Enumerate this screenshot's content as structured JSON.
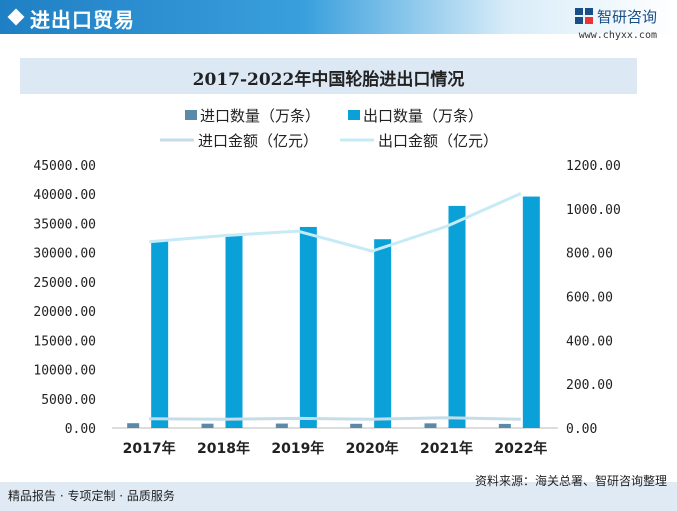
{
  "header": {
    "title": "进出口贸易",
    "brand": "智研咨询",
    "website": "www.chyxx.com"
  },
  "footer": {
    "left": "精品报告 · 专项定制 · 品质服务",
    "source": "资料来源：海关总署、智研咨询整理"
  },
  "colors": {
    "import_qty": "#5b8aa8",
    "export_qty": "#0aa0d8",
    "import_amt": "#c5dde8",
    "export_amt": "#c6ebf7"
  },
  "chart_data": {
    "type": "bar",
    "title": "2017-2022年中国轮胎进出口情况",
    "categories": [
      "2017年",
      "2018年",
      "2019年",
      "2020年",
      "2021年",
      "2022年"
    ],
    "series": [
      {
        "name": "进口数量（万条）",
        "type": "bar",
        "axis": "left",
        "values": [
          820,
          740,
          760,
          720,
          800,
          700
        ]
      },
      {
        "name": "出口数量（万条）",
        "type": "bar",
        "axis": "left",
        "values": [
          32000,
          33200,
          34400,
          32300,
          38000,
          39600
        ]
      },
      {
        "name": "进口金额（亿元）",
        "type": "line",
        "axis": "right",
        "values": [
          42,
          40,
          44,
          40,
          47,
          40
        ]
      },
      {
        "name": "出口金额（亿元）",
        "type": "line",
        "axis": "right",
        "values": [
          850,
          878,
          898,
          807,
          920,
          1070
        ]
      }
    ],
    "left_axis": {
      "ticks": [
        "45000.00",
        "40000.00",
        "35000.00",
        "30000.00",
        "25000.00",
        "20000.00",
        "15000.00",
        "10000.00",
        "5000.00",
        "0.00"
      ],
      "range": [
        0,
        45000
      ]
    },
    "right_axis": {
      "ticks": [
        "1200.00",
        "1000.00",
        "800.00",
        "600.00",
        "400.00",
        "200.00",
        "0.00"
      ],
      "range": [
        0,
        1200
      ]
    },
    "legend_position": "top"
  }
}
